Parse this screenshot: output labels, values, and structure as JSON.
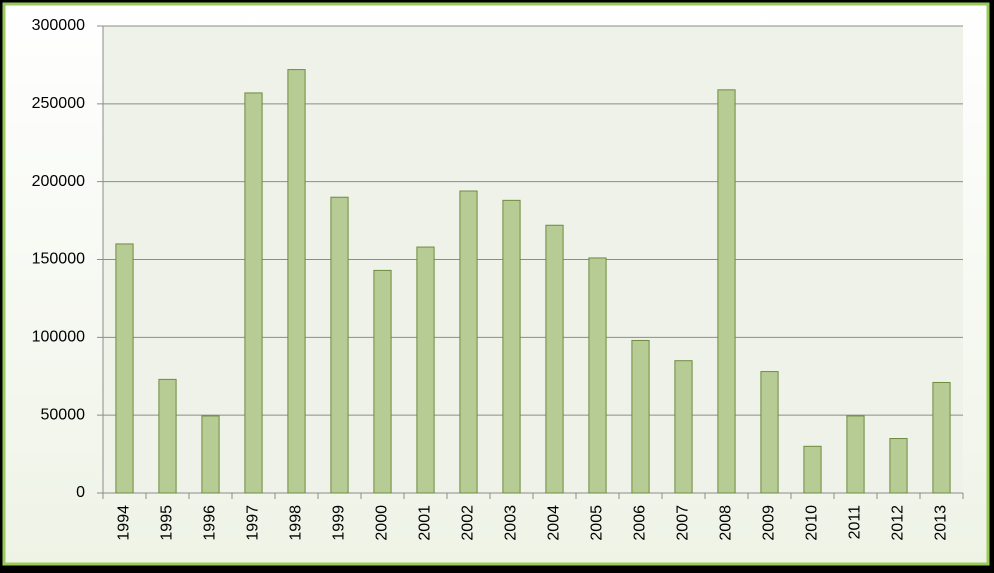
{
  "chart_data": {
    "type": "bar",
    "categories": [
      "1994",
      "1995",
      "1996",
      "1997",
      "1998",
      "1999",
      "2000",
      "2001",
      "2002",
      "2003",
      "2004",
      "2005",
      "2006",
      "2007",
      "2008",
      "2009",
      "2010",
      "2011",
      "2012",
      "2013"
    ],
    "values": [
      160000,
      73000,
      49500,
      257000,
      272000,
      190000,
      143000,
      158000,
      194000,
      188000,
      172000,
      151000,
      98000,
      85000,
      259000,
      78000,
      30000,
      49500,
      35000,
      71000
    ],
    "color": "#b6cc94",
    "ylim": [
      0,
      300000
    ],
    "yticks": [
      0,
      50000,
      100000,
      150000,
      200000,
      250000,
      300000
    ],
    "grid": true
  }
}
